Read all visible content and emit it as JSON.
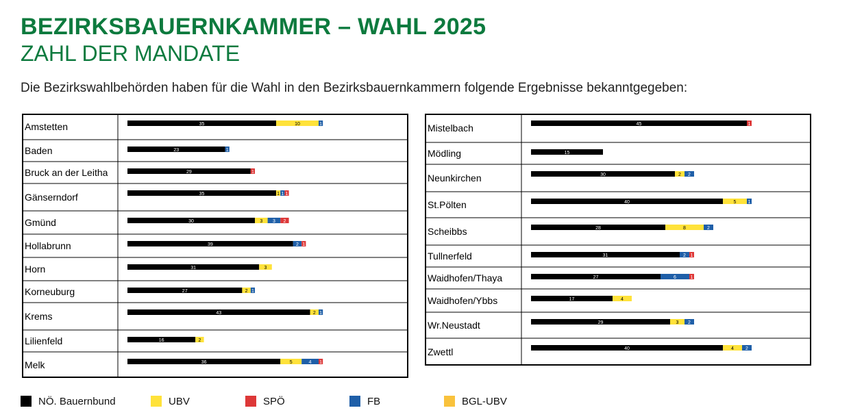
{
  "header": {
    "title": "BEZIRKSBAUERNKAMMER – WAHL 2025",
    "subtitle": "ZAHL DER MANDATE",
    "intro": "Die Bezirkswahlbehörden haben für die Wahl in den Bezirksbauernkammern folgende Ergebnisse bekanntgegeben:"
  },
  "colors": {
    "title": "#0d7a3e",
    "NÖ. Bauernbund": "#000000",
    "UBV": "#ffe23a",
    "SPÖ": "#dd3838",
    "FB": "#1f5fa8",
    "BGL-UBV": "#f9c23c"
  },
  "legend": {
    "position": "bottom",
    "items": [
      {
        "name": "NÖ. Bauernbund",
        "color": "#000000"
      },
      {
        "name": "UBV",
        "color": "#ffe23a"
      },
      {
        "name": "SPÖ",
        "color": "#dd3838"
      },
      {
        "name": "FB",
        "color": "#1f5fa8"
      },
      {
        "name": "BGL-UBV",
        "color": "#f9c23c"
      }
    ]
  },
  "chart_data": [
    {
      "type": "bar",
      "stacked": true,
      "orientation": "horizontal",
      "categories": [
        "Amstetten",
        "Baden",
        "Bruck an der Leitha",
        "Gänserndorf",
        "Gmünd",
        "Hollabrunn",
        "Horn",
        "Korneuburg",
        "Krems",
        "Lilienfeld",
        "Melk"
      ],
      "series": [
        {
          "name": "NÖ. Bauernbund",
          "values": [
            35,
            23,
            29,
            35,
            30,
            39,
            31,
            27,
            43,
            16,
            36
          ]
        },
        {
          "name": "UBV",
          "values": [
            10,
            0,
            0,
            1,
            3,
            0,
            3,
            2,
            2,
            2,
            5
          ]
        },
        {
          "name": "FB",
          "values": [
            1,
            1,
            0,
            1,
            3,
            2,
            0,
            1,
            1,
            0,
            4
          ]
        },
        {
          "name": "SPÖ",
          "values": [
            0,
            0,
            1,
            1,
            2,
            1,
            0,
            0,
            0,
            0,
            1
          ]
        }
      ]
    },
    {
      "type": "bar",
      "stacked": true,
      "orientation": "horizontal",
      "categories": [
        "Mistelbach",
        "Mödling",
        "Neunkirchen",
        "St.Pölten",
        "Scheibbs",
        "Tullnerfeld",
        "Waidhofen/Thaya",
        "Waidhofen/Ybbs",
        "Wr.Neustadt",
        "Zwettl"
      ],
      "series": [
        {
          "name": "NÖ. Bauernbund",
          "values": [
            45,
            15,
            30,
            40,
            28,
            31,
            27,
            17,
            29,
            40
          ]
        },
        {
          "name": "UBV",
          "values": [
            0,
            0,
            2,
            5,
            8,
            0,
            0,
            4,
            3,
            4
          ]
        },
        {
          "name": "FB",
          "values": [
            0,
            0,
            2,
            1,
            2,
            2,
            6,
            0,
            2,
            2
          ]
        },
        {
          "name": "SPÖ",
          "values": [
            1,
            0,
            0,
            0,
            0,
            1,
            1,
            0,
            0,
            0
          ]
        }
      ]
    }
  ]
}
